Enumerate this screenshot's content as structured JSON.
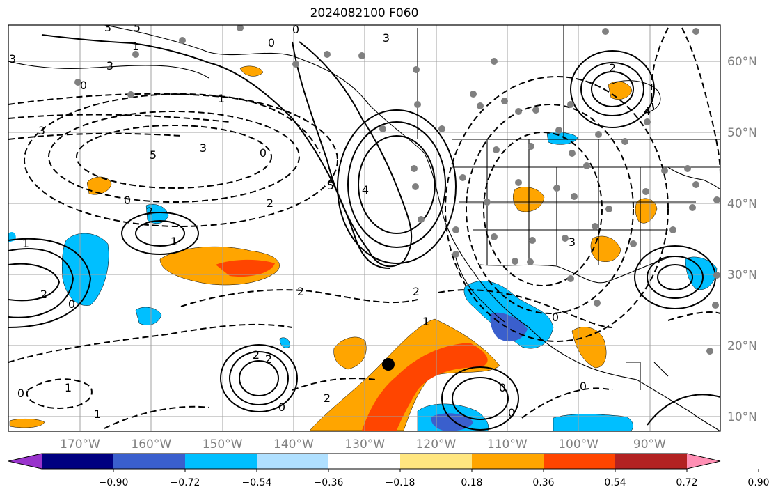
{
  "title": "2024082100 F060",
  "map": {
    "latitudes": [
      {
        "value": 10,
        "label": "10°N"
      },
      {
        "value": 20,
        "label": "20°N"
      },
      {
        "value": 30,
        "label": "30°N"
      },
      {
        "value": 40,
        "label": "40°N"
      },
      {
        "value": 50,
        "label": "50°N"
      },
      {
        "value": 60,
        "label": "60°N"
      }
    ],
    "longitudes": [
      {
        "value": -170,
        "label": "170°W"
      },
      {
        "value": -160,
        "label": "160°W"
      },
      {
        "value": -150,
        "label": "150°W"
      },
      {
        "value": -140,
        "label": "140°W"
      },
      {
        "value": -130,
        "label": "130°W"
      },
      {
        "value": -120,
        "label": "120°W"
      },
      {
        "value": -110,
        "label": "110°W"
      },
      {
        "value": -100,
        "label": "100°W"
      },
      {
        "value": -90,
        "label": "90°W"
      }
    ],
    "contour_labels": [
      "3",
      "5",
      "0",
      "3",
      "0",
      "1",
      "3",
      "3",
      "0",
      "1",
      "3",
      "2",
      "4",
      "5",
      "3",
      "0",
      "5",
      "4",
      "2",
      "0",
      "1",
      "2",
      "3",
      "2",
      "0",
      "1",
      "2",
      "2",
      "1",
      "0",
      "2",
      "2",
      "1",
      "0",
      "0",
      "1",
      "0",
      "0",
      "0",
      "2"
    ],
    "grid_color": "#a0a0a0",
    "ocean_color": "#ffffff",
    "coastline_color": "#000000"
  },
  "colorbar": {
    "ticks": [
      "−0.90",
      "−0.72",
      "−0.54",
      "−0.36",
      "−0.18",
      "0.18",
      "0.36",
      "0.54",
      "0.72",
      "0.90"
    ],
    "colors": [
      "#9933cc",
      "#000080",
      "#3a5fcd",
      "#00bfff",
      "#b0e0ff",
      "#ffffff",
      "#ffe680",
      "#ffa500",
      "#ff4500",
      "#b22222",
      "#ff8fb4"
    ]
  }
}
